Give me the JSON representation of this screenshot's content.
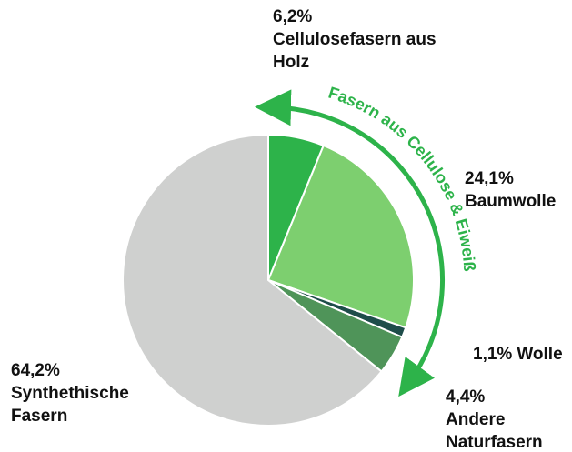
{
  "chart_data": {
    "type": "pie",
    "categories": [
      "Cellulosefasern aus Holz",
      "Baumwolle",
      "Wolle",
      "Andere Naturfasern",
      "Synthethische Fasern"
    ],
    "values": [
      6.2,
      24.1,
      1.1,
      4.4,
      64.2
    ],
    "value_labels": [
      "6,2%",
      "24,1%",
      "1,1%",
      "4,4%",
      "64,2%"
    ],
    "colors": [
      "#2db34a",
      "#7dcf6f",
      "#1e4d4a",
      "#4f9459",
      "#cfd0cf"
    ],
    "annotation": "Fasern aus Cellulose & Eiweiß"
  }
}
